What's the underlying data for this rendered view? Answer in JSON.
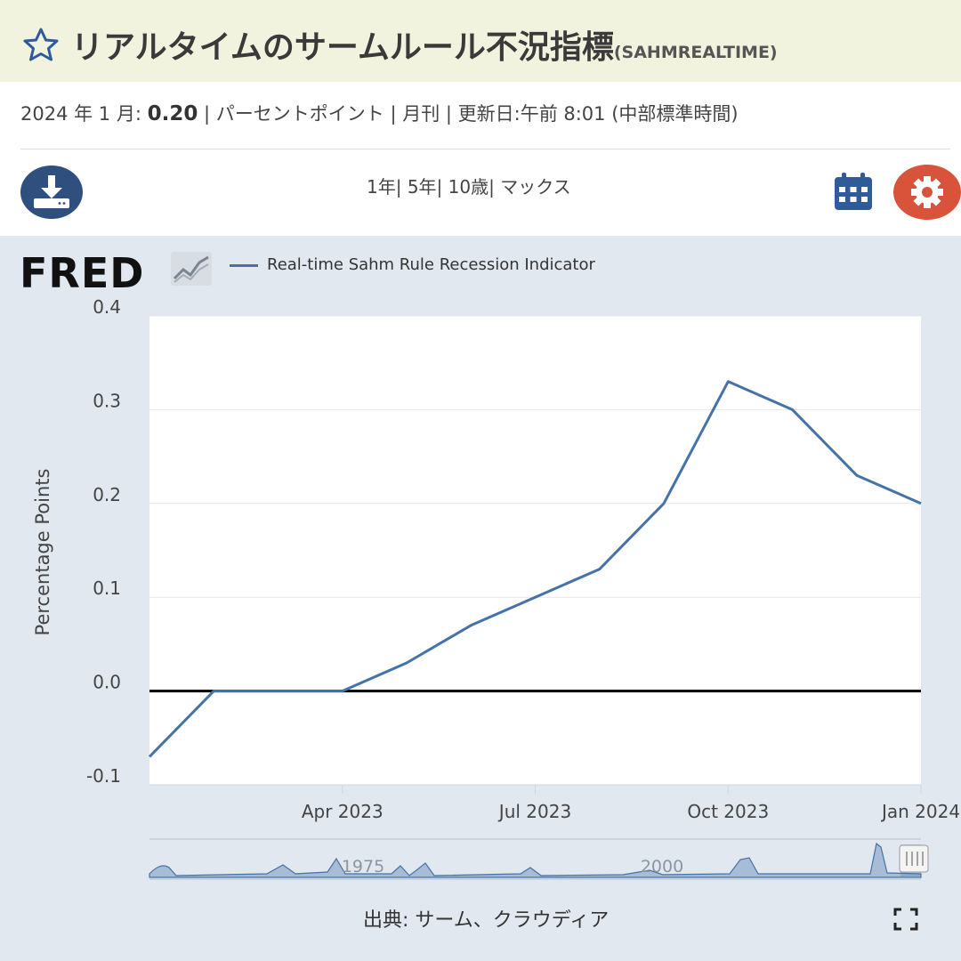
{
  "header": {
    "title": "リアルタイムのサームルール不況指標",
    "series_code": "(SAHMREALTIME)",
    "star_icon": "star-outline-icon"
  },
  "meta": {
    "date_label": "2024 年 1 月:",
    "value": "0.20",
    "rest": " | パーセントポイント | 月刊 | 更新日:午前 8:01 (中部標準時間)"
  },
  "toolbar": {
    "download_icon": "download-icon",
    "ranges": [
      "1年|",
      " 5年|",
      " 10歳|",
      " マックス"
    ],
    "calendar_icon": "calendar-icon",
    "settings_icon": "gear-icon"
  },
  "brand": {
    "logo_text": "FRED"
  },
  "colors": {
    "line": "#4572a7",
    "accent": "#2f4f7f",
    "gear": "#d9533b",
    "panel": "#e1e8ef"
  },
  "chart_data": {
    "type": "line",
    "series": [
      {
        "name": "Real-time Sahm Rule Recession Indicator",
        "x": [
          "2023-01-01",
          "2023-02-01",
          "2023-03-01",
          "2023-04-01",
          "2023-05-01",
          "2023-06-01",
          "2023-07-01",
          "2023-08-01",
          "2023-09-01",
          "2023-10-01",
          "2023-11-01",
          "2023-12-01",
          "2024-01-01"
        ],
        "values": [
          -0.07,
          0.0,
          0.0,
          0.0,
          0.03,
          0.07,
          0.1,
          0.13,
          0.2,
          0.33,
          0.3,
          0.23,
          0.2
        ]
      }
    ],
    "ylabel": "Percentage Points",
    "ylim": [
      -0.1,
      0.4
    ],
    "yticks": [
      "0.4",
      "0.3",
      "0.2",
      "0.1",
      "0.0",
      "-0.1"
    ],
    "ytick_values": [
      0.4,
      0.3,
      0.2,
      0.1,
      0.0,
      -0.1
    ],
    "xticks": [
      "Apr 2023",
      "Jul 2023",
      "Oct 2023",
      "Jan 2024"
    ],
    "xtick_months": [
      3,
      6,
      9,
      12
    ],
    "zero_line": true,
    "grid": "horizontal",
    "navigator": {
      "labels": [
        "1975",
        "2000"
      ]
    }
  },
  "footer": {
    "source": "出典: サーム、クラウディア",
    "fullscreen_icon": "fullscreen-icon"
  }
}
